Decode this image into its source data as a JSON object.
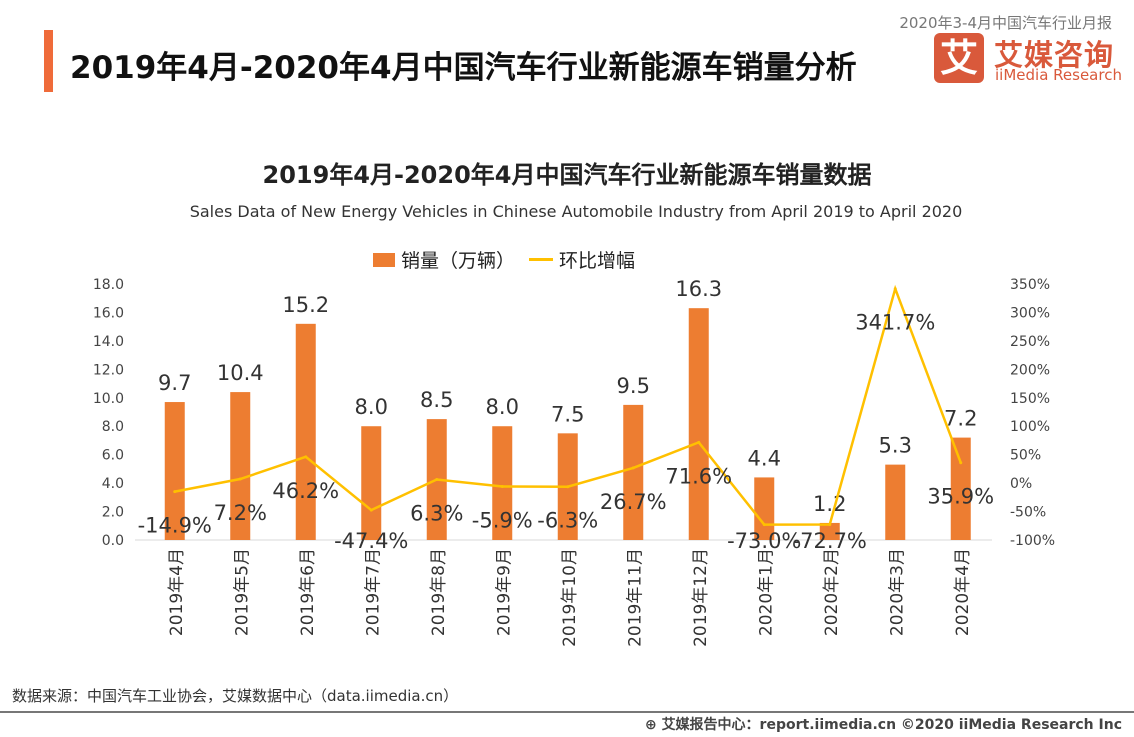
{
  "header": {
    "title": "2019年4月-2020年4月中国汽车行业新能源车销量分析",
    "report": "2020年3-4月中国汽车行业月报",
    "brand_logo_char": "艾",
    "brand_cn": "艾媒咨询",
    "brand_en": "iiMedia Research"
  },
  "chart_data": {
    "type": "bar",
    "title": "2019年4月-2020年4月中国汽车行业新能源车销量数据",
    "subtitle": "Sales Data of New Energy Vehicles in Chinese Automobile Industry from April 2019 to April 2020",
    "categories": [
      "2019年4月",
      "2019年5月",
      "2019年6月",
      "2019年7月",
      "2019年8月",
      "2019年9月",
      "2019年10月",
      "2019年11月",
      "2019年12月",
      "2020年1月",
      "2020年2月",
      "2020年3月",
      "2020年4月"
    ],
    "series": [
      {
        "name": "销量（万辆）",
        "type": "bar",
        "axis": "left",
        "color": "#ed7d31",
        "values": [
          9.7,
          10.4,
          15.2,
          8.0,
          8.5,
          8.0,
          7.5,
          9.5,
          16.3,
          4.4,
          1.2,
          5.3,
          7.2
        ]
      },
      {
        "name": "环比增幅",
        "type": "line",
        "axis": "right",
        "color": "#ffc000",
        "values": [
          -14.9,
          7.2,
          46.2,
          -47.4,
          6.3,
          -5.9,
          -6.3,
          26.7,
          71.6,
          -73.0,
          -72.7,
          341.7,
          35.9
        ]
      }
    ],
    "y_left": {
      "range": [
        0,
        18
      ],
      "ticks": [
        "0.0",
        "2.0",
        "4.0",
        "6.0",
        "8.0",
        "10.0",
        "12.0",
        "14.0",
        "16.0",
        "18.0"
      ]
    },
    "y_right": {
      "range": [
        -100,
        350
      ],
      "ticks": [
        "-100%",
        "-50%",
        "0%",
        "50%",
        "100%",
        "150%",
        "200%",
        "250%",
        "300%",
        "350%"
      ]
    },
    "legend": "top",
    "grid": false
  },
  "footer": {
    "source": "数据来源：中国汽车工业协会，艾媒数据中心（data.iimedia.cn）",
    "text": "艾媒报告中心：report.iimedia.cn   ©2020  iiMedia Research  Inc"
  }
}
